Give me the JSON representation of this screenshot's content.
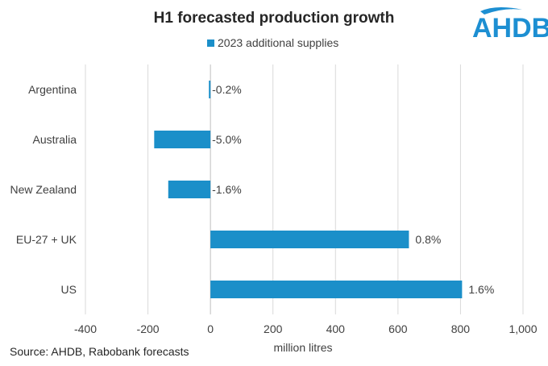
{
  "chart_data": {
    "type": "bar",
    "orientation": "horizontal",
    "title": "H1 forecasted production growth",
    "categories": [
      "Argentina",
      "Australia",
      "New Zealand",
      "EU-27 + UK",
      "US"
    ],
    "series": [
      {
        "name": "2023 additional supplies",
        "values": [
          -5,
          -180,
          -135,
          635,
          805
        ],
        "data_labels": [
          "-0.2%",
          "-5.0%",
          "-1.6%",
          "0.8%",
          "1.6%"
        ]
      }
    ],
    "xlim": [
      -400,
      1000
    ],
    "xticks": [
      -400,
      -200,
      0,
      200,
      400,
      600,
      800,
      1000
    ],
    "xtick_labels": [
      "-400",
      "-200",
      "0",
      "200",
      "400",
      "600",
      "800",
      "1,000"
    ],
    "xlabel": "million litres",
    "ylabel": "",
    "grid": true,
    "legend_position": "top",
    "bar_color": "#1b8fc9"
  },
  "source": "Source: AHDB,  Rabobank forecasts",
  "logo": {
    "text": "AHDB",
    "color": "#1d8fd2"
  }
}
